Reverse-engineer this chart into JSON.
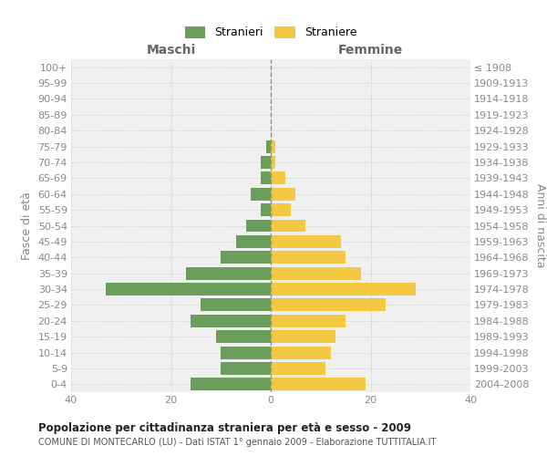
{
  "age_groups": [
    "0-4",
    "5-9",
    "10-14",
    "15-19",
    "20-24",
    "25-29",
    "30-34",
    "35-39",
    "40-44",
    "45-49",
    "50-54",
    "55-59",
    "60-64",
    "65-69",
    "70-74",
    "75-79",
    "80-84",
    "85-89",
    "90-94",
    "95-99",
    "100+"
  ],
  "birth_years": [
    "2004-2008",
    "1999-2003",
    "1994-1998",
    "1989-1993",
    "1984-1988",
    "1979-1983",
    "1974-1978",
    "1969-1973",
    "1964-1968",
    "1959-1963",
    "1954-1958",
    "1949-1953",
    "1944-1948",
    "1939-1943",
    "1934-1938",
    "1929-1933",
    "1924-1928",
    "1919-1923",
    "1914-1918",
    "1909-1913",
    "≤ 1908"
  ],
  "maschi": [
    16,
    10,
    10,
    11,
    16,
    14,
    33,
    17,
    10,
    7,
    5,
    2,
    4,
    2,
    2,
    1,
    0,
    0,
    0,
    0,
    0
  ],
  "femmine": [
    19,
    11,
    12,
    13,
    15,
    23,
    29,
    18,
    15,
    14,
    7,
    4,
    5,
    3,
    1,
    1,
    0,
    0,
    0,
    0,
    0
  ],
  "maschi_color": "#6a9e5a",
  "femmine_color": "#f5c842",
  "title": "Popolazione per cittadinanza straniera per età e sesso - 2009",
  "subtitle": "COMUNE DI MONTECARLO (LU) - Dati ISTAT 1° gennaio 2009 - Elaborazione TUTTITALIA.IT",
  "label_maschi": "Maschi",
  "label_femmine": "Femmine",
  "ylabel_left": "Fasce di età",
  "ylabel_right": "Anni di nascita",
  "legend_maschi": "Stranieri",
  "legend_femmine": "Straniere",
  "xlim": 40,
  "bg_color": "#f0f0f0",
  "grid_color": "#d0d0d0",
  "centerline_color": "#999966"
}
